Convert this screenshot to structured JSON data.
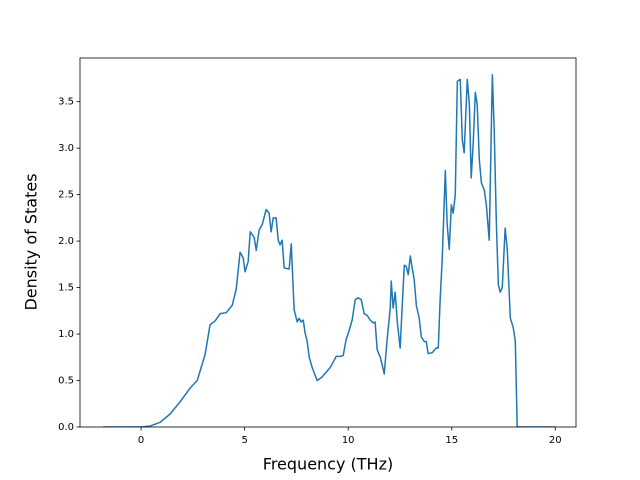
{
  "chart_data": {
    "type": "line",
    "xlabel": "Frequency (THz)",
    "ylabel": "Density of States",
    "color": "#1f77b4",
    "x": [
      -1.84,
      0,
      0.43,
      0.92,
      1.4,
      1.88,
      2.37,
      2.71,
      3.09,
      3.33,
      3.57,
      3.82,
      4.11,
      4.4,
      4.59,
      4.78,
      4.93,
      5.02,
      5.17,
      5.27,
      5.46,
      5.56,
      5.7,
      5.85,
      6.04,
      6.18,
      6.28,
      6.38,
      6.52,
      6.62,
      6.71,
      6.81,
      6.91,
      7.15,
      7.25,
      7.39,
      7.54,
      7.63,
      7.73,
      7.83,
      7.92,
      8.02,
      8.12,
      8.26,
      8.5,
      8.7,
      8.94,
      9.13,
      9.28,
      9.42,
      9.61,
      9.76,
      9.9,
      10.05,
      10.19,
      10.34,
      10.48,
      10.63,
      10.77,
      10.92,
      11.06,
      11.21,
      11.3,
      11.4,
      11.55,
      11.64,
      11.74,
      11.88,
      12.03,
      12.08,
      12.17,
      12.27,
      12.37,
      12.51,
      12.61,
      12.71,
      12.8,
      12.9,
      13.0,
      13.09,
      13.19,
      13.29,
      13.43,
      13.53,
      13.67,
      13.77,
      13.86,
      14.06,
      14.25,
      14.35,
      14.44,
      14.54,
      14.69,
      14.78,
      14.88,
      14.98,
      15.07,
      15.17,
      15.27,
      15.41,
      15.51,
      15.6,
      15.75,
      15.85,
      15.94,
      16.04,
      16.14,
      16.23,
      16.33,
      16.43,
      16.57,
      16.67,
      16.81,
      16.96,
      17.05,
      17.15,
      17.25,
      17.34,
      17.44,
      17.58,
      17.68,
      17.83,
      17.97,
      18.07,
      18.16,
      20.0
    ],
    "values": [
      0,
      0,
      0.01,
      0.05,
      0.14,
      0.27,
      0.42,
      0.5,
      0.78,
      1.1,
      1.14,
      1.22,
      1.23,
      1.31,
      1.48,
      1.88,
      1.82,
      1.67,
      1.78,
      2.1,
      2.04,
      1.9,
      2.12,
      2.18,
      2.34,
      2.3,
      2.1,
      2.25,
      2.25,
      2.01,
      1.96,
      2.01,
      1.71,
      1.7,
      1.97,
      1.26,
      1.13,
      1.17,
      1.13,
      1.15,
      1.01,
      0.92,
      0.75,
      0.64,
      0.5,
      0.53,
      0.59,
      0.64,
      0.7,
      0.76,
      0.76,
      0.77,
      0.94,
      1.04,
      1.15,
      1.37,
      1.39,
      1.37,
      1.22,
      1.2,
      1.15,
      1.12,
      1.13,
      0.83,
      0.75,
      0.67,
      0.57,
      0.94,
      1.28,
      1.57,
      1.28,
      1.45,
      1.13,
      0.85,
      1.31,
      1.74,
      1.73,
      1.64,
      1.84,
      1.71,
      1.58,
      1.31,
      1.17,
      0.97,
      0.92,
      0.92,
      0.79,
      0.8,
      0.85,
      0.85,
      1.37,
      1.8,
      2.76,
      2.18,
      1.91,
      2.39,
      2.3,
      2.5,
      3.72,
      3.74,
      3.09,
      2.95,
      3.74,
      3.47,
      2.68,
      3.07,
      3.6,
      3.47,
      2.88,
      2.63,
      2.55,
      2.39,
      2.01,
      3.79,
      3.2,
      2.23,
      1.53,
      1.45,
      1.5,
      2.14,
      1.91,
      1.17,
      1.07,
      0.92,
      0,
      0
    ],
    "xlim": [
      -2.95,
      21.0
    ],
    "xticks": [
      0,
      5,
      10,
      15,
      20
    ],
    "ylim": [
      0,
      3.97
    ],
    "yticks": [
      {
        "value": 0,
        "label": "0.0"
      },
      0.5,
      {
        "value": 1,
        "label": "1.0"
      },
      1.5,
      {
        "value": 2,
        "label": "2.0"
      },
      2.5,
      {
        "value": 3,
        "label": "3.0"
      },
      3.5
    ]
  }
}
